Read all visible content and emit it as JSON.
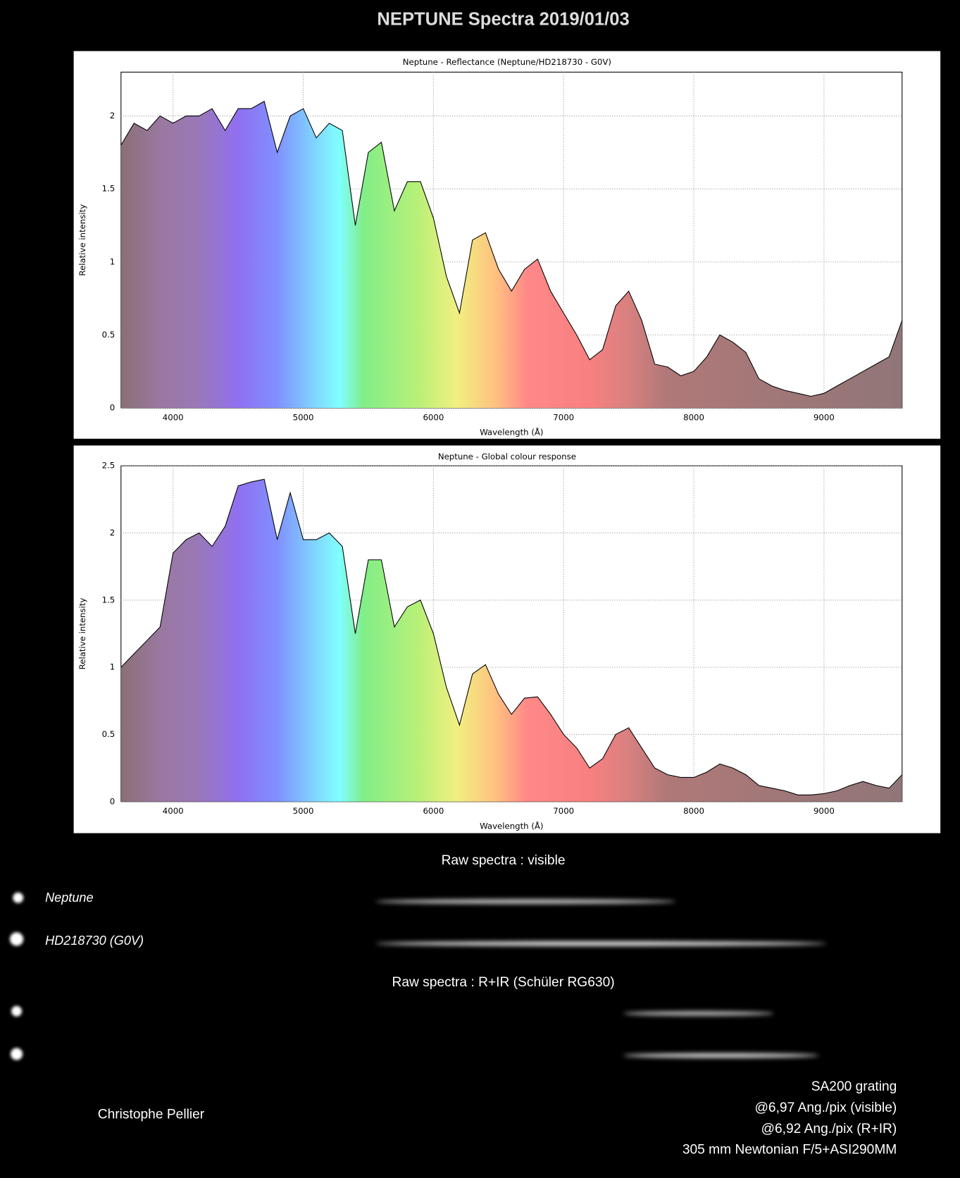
{
  "title": "NEPTUNE Spectra 2019/01/03",
  "chart_data": [
    {
      "type": "area",
      "title": "Neptune - Reflectance (Neptune/HD218730 - G0V)",
      "x_label": "Wavelength (Å)",
      "y_label": "Relative intensity",
      "x": [
        3600,
        3700,
        3800,
        3900,
        4000,
        4100,
        4200,
        4300,
        4400,
        4500,
        4600,
        4700,
        4800,
        4900,
        5000,
        5100,
        5200,
        5300,
        5400,
        5500,
        5600,
        5700,
        5800,
        5900,
        6000,
        6100,
        6200,
        6300,
        6400,
        6500,
        6600,
        6700,
        6800,
        6900,
        7000,
        7100,
        7200,
        7300,
        7400,
        7500,
        7600,
        7700,
        7800,
        7900,
        8000,
        8100,
        8200,
        8300,
        8400,
        8500,
        8600,
        8700,
        8800,
        8900,
        9000,
        9100,
        9200,
        9300,
        9400,
        9500,
        9600
      ],
      "series": [
        {
          "color": "#000000",
          "values": [
            1.8,
            1.95,
            1.9,
            2.0,
            1.95,
            2.0,
            2.0,
            2.05,
            1.9,
            2.05,
            2.05,
            2.1,
            1.75,
            2.0,
            2.05,
            1.85,
            1.95,
            1.9,
            1.25,
            1.75,
            1.82,
            1.35,
            1.55,
            1.55,
            1.3,
            0.9,
            0.65,
            1.15,
            1.2,
            0.95,
            0.8,
            0.95,
            1.02,
            0.8,
            0.65,
            0.5,
            0.33,
            0.4,
            0.7,
            0.8,
            0.6,
            0.3,
            0.28,
            0.22,
            0.25,
            0.35,
            0.5,
            0.45,
            0.38,
            0.2,
            0.15,
            0.12,
            0.1,
            0.08,
            0.1,
            0.15,
            0.2,
            0.25,
            0.3,
            0.35,
            0.6
          ]
        }
      ],
      "xlim": [
        3600,
        9600
      ],
      "xticks": [
        4000,
        5000,
        6000,
        7000,
        8000,
        9000
      ],
      "ylim": [
        0,
        2.3
      ],
      "yticks": [
        0,
        0.5,
        1,
        1.5,
        2
      ],
      "grid": true
    },
    {
      "type": "area",
      "title": "Neptune - Global colour response",
      "x_label": "Wavelength (Å)",
      "y_label": "Relative intensity",
      "x": [
        3600,
        3700,
        3800,
        3900,
        4000,
        4100,
        4200,
        4300,
        4400,
        4500,
        4600,
        4700,
        4800,
        4900,
        5000,
        5100,
        5200,
        5300,
        5400,
        5500,
        5600,
        5700,
        5800,
        5900,
        6000,
        6100,
        6200,
        6300,
        6400,
        6500,
        6600,
        6700,
        6800,
        6900,
        7000,
        7100,
        7200,
        7300,
        7400,
        7500,
        7600,
        7700,
        7800,
        7900,
        8000,
        8100,
        8200,
        8300,
        8400,
        8500,
        8600,
        8700,
        8800,
        8900,
        9000,
        9100,
        9200,
        9300,
        9400,
        9500,
        9600
      ],
      "series": [
        {
          "color": "#000000",
          "values": [
            1.0,
            1.1,
            1.2,
            1.3,
            1.85,
            1.95,
            2.0,
            1.9,
            2.05,
            2.35,
            2.38,
            2.4,
            1.95,
            2.3,
            1.95,
            1.95,
            2.0,
            1.9,
            1.25,
            1.8,
            1.8,
            1.3,
            1.45,
            1.5,
            1.25,
            0.85,
            0.57,
            0.95,
            1.02,
            0.8,
            0.65,
            0.77,
            0.78,
            0.65,
            0.5,
            0.4,
            0.25,
            0.32,
            0.5,
            0.55,
            0.4,
            0.25,
            0.2,
            0.18,
            0.18,
            0.22,
            0.28,
            0.25,
            0.2,
            0.12,
            0.1,
            0.08,
            0.05,
            0.05,
            0.06,
            0.08,
            0.12,
            0.15,
            0.12,
            0.1,
            0.2
          ]
        }
      ],
      "xlim": [
        3600,
        9600
      ],
      "xticks": [
        4000,
        5000,
        6000,
        7000,
        8000,
        9000
      ],
      "ylim": [
        0,
        2.5
      ],
      "yticks": [
        0,
        0.5,
        1,
        1.5,
        2,
        2.5
      ],
      "grid": true
    }
  ],
  "raw_spectra": {
    "visible_title": "Raw spectra : visible",
    "targets": [
      "Neptune",
      "HD218730 (G0V)"
    ],
    "ir_title": "Raw spectra : R+IR (Schüler RG630)"
  },
  "author": "Christophe Pellier",
  "setup": [
    "SA200 grating",
    "@6,97 Ang./pix (visible)",
    "@6,92 Ang./pix (R+IR)",
    "305 mm Newtonian F/5+ASI290MM"
  ]
}
